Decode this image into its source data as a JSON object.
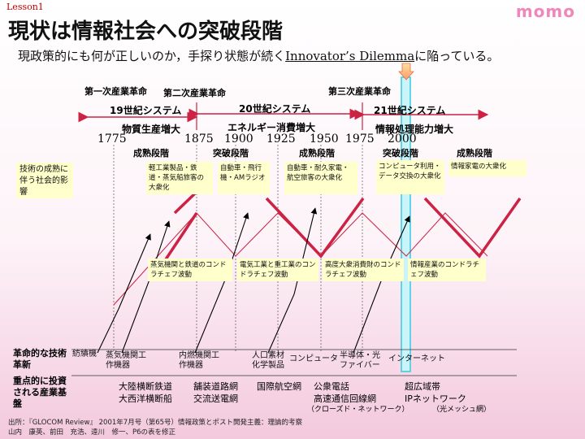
{
  "header": {
    "lesson": "Lesson1",
    "brand": "momo",
    "title": "現状は情報社会への突破段階",
    "subtitle_pre": "現政策的にも何が正しいのか，手探り状態が続く",
    "subtitle_term": "Innovator’s Dilemma",
    "subtitle_post": "に陥っている。"
  },
  "revolutions": {
    "first": "第一次産業革命",
    "second": "第二次産業革命",
    "third": "第三次産業革命"
  },
  "systems": {
    "s19": "19世紀システム",
    "s20": "20世紀システム",
    "s21": "21世紀システム"
  },
  "capacities": {
    "c1": "物質生産増大",
    "c2": "エネルギー消費増大",
    "c3": "情報処理能力増大"
  },
  "years": {
    "y1775": "1775",
    "y1875": "1875",
    "y1900": "1900",
    "y1925": "1925",
    "y1950": "1950",
    "y1975": "1975",
    "y2000": "2000"
  },
  "stages": {
    "mature1": "成熟段階",
    "breakthrough1": "突破段階",
    "mature2": "成熟段階",
    "breakthrough2": "突破段階",
    "mature3": "成熟段階"
  },
  "left_label": "技術の成熟に伴う社会的影響",
  "impact_boxes": {
    "b1": "軽工業製品・鉄道・蒸気船旅客の大衆化",
    "b2": "自動車・飛行機・AMラジオ",
    "b3": "自動車・耐久家電・航空旅客の大衆化",
    "b4": "コンピュータ利用・データ交換の大衆化",
    "b5": "情報家電の大衆化"
  },
  "waves": {
    "w1": "蒸気機関と鉄道のコンドラチェフ波動",
    "w2": "電気工業と重工業のコンドラチェフ波動",
    "w3": "高度大衆消費財のコンドラチェフ波動",
    "w4": "情報産業のコンドラチェフ波動"
  },
  "side_labels": {
    "tech": "革命的な技術革新",
    "infra": "重点的に投資される産業基盤"
  },
  "techs": {
    "t1": "紡績機",
    "t2": "蒸気機関工作機器",
    "t3": "内燃機関工作機器",
    "t4": "人口素材化学製品",
    "t5": "コンピュータ",
    "t6": "半導体・光ファイバー",
    "t7": "インターネット"
  },
  "infras": {
    "i1": "大陸横断鉄道",
    "i2": "大西洋横断船",
    "i3": "舗装道路網",
    "i4": "交流送電網",
    "i5": "国際航空網",
    "i6": "公衆電話",
    "i7": "高速通信回線網",
    "i8": "（クローズド・ネットワーク）",
    "i9": "超広域帯",
    "i10": "IPネットワーク",
    "i11": "（光メッシュ網）"
  },
  "source": {
    "line1": "出所：『GLOCOM Review』 2001年7月号（第65号）情報政策とポスト開発主義：理論的考察",
    "line2": "山内　康英、前田　充浩、遠川　修一、P6の表を修正"
  },
  "colors": {
    "accent": "#cc2244",
    "highlight": "#66e0f0",
    "box_fill": "#ffffcc"
  }
}
